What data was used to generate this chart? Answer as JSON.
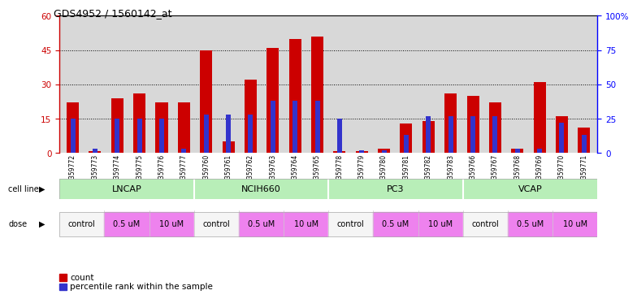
{
  "title": "GDS4952 / 1560142_at",
  "samples": [
    "GSM1359772",
    "GSM1359773",
    "GSM1359774",
    "GSM1359775",
    "GSM1359776",
    "GSM1359777",
    "GSM1359760",
    "GSM1359761",
    "GSM1359762",
    "GSM1359763",
    "GSM1359764",
    "GSM1359765",
    "GSM1359778",
    "GSM1359779",
    "GSM1359780",
    "GSM1359781",
    "GSM1359782",
    "GSM1359783",
    "GSM1359766",
    "GSM1359767",
    "GSM1359768",
    "GSM1359769",
    "GSM1359770",
    "GSM1359771"
  ],
  "count_values": [
    22,
    1,
    24,
    26,
    22,
    22,
    45,
    5,
    32,
    46,
    50,
    51,
    1,
    1,
    2,
    13,
    14,
    26,
    25,
    22,
    2,
    31,
    16,
    11
  ],
  "percentile_values": [
    25,
    3,
    25,
    25,
    25,
    3,
    28,
    28,
    28,
    38,
    38,
    38,
    25,
    2,
    2,
    13,
    27,
    27,
    27,
    27,
    3,
    3,
    22,
    13
  ],
  "ylim_left": [
    0,
    60
  ],
  "ylim_right": [
    0,
    100
  ],
  "yticks_left": [
    0,
    15,
    30,
    45,
    60
  ],
  "yticks_right": [
    0,
    25,
    50,
    75,
    100
  ],
  "bar_color_count": "#CC0000",
  "bar_color_pct": "#3333CC",
  "bg_color": "#D8D8D8",
  "legend_count": "count",
  "legend_pct": "percentile rank within the sample",
  "cell_line_bg": "#B8EEB8",
  "dose_bg_white": "#F5F5F5",
  "dose_bg_pink": "#EE82EE",
  "cell_lines": [
    {
      "name": "LNCAP",
      "start": 0,
      "end": 6
    },
    {
      "name": "NCIH660",
      "start": 6,
      "end": 12
    },
    {
      "name": "PC3",
      "start": 12,
      "end": 18
    },
    {
      "name": "VCAP",
      "start": 18,
      "end": 24
    }
  ],
  "dose_groups": [
    {
      "name": "control",
      "start": 0,
      "end": 2,
      "pink": false
    },
    {
      "name": "0.5 uM",
      "start": 2,
      "end": 4,
      "pink": true
    },
    {
      "name": "10 uM",
      "start": 4,
      "end": 6,
      "pink": true
    },
    {
      "name": "control",
      "start": 6,
      "end": 8,
      "pink": false
    },
    {
      "name": "0.5 uM",
      "start": 8,
      "end": 10,
      "pink": true
    },
    {
      "name": "10 uM",
      "start": 10,
      "end": 12,
      "pink": true
    },
    {
      "name": "control",
      "start": 12,
      "end": 14,
      "pink": false
    },
    {
      "name": "0.5 uM",
      "start": 14,
      "end": 16,
      "pink": true
    },
    {
      "name": "10 uM",
      "start": 16,
      "end": 18,
      "pink": true
    },
    {
      "name": "control",
      "start": 18,
      "end": 20,
      "pink": false
    },
    {
      "name": "0.5 uM",
      "start": 20,
      "end": 22,
      "pink": true
    },
    {
      "name": "10 uM",
      "start": 22,
      "end": 24,
      "pink": true
    }
  ]
}
